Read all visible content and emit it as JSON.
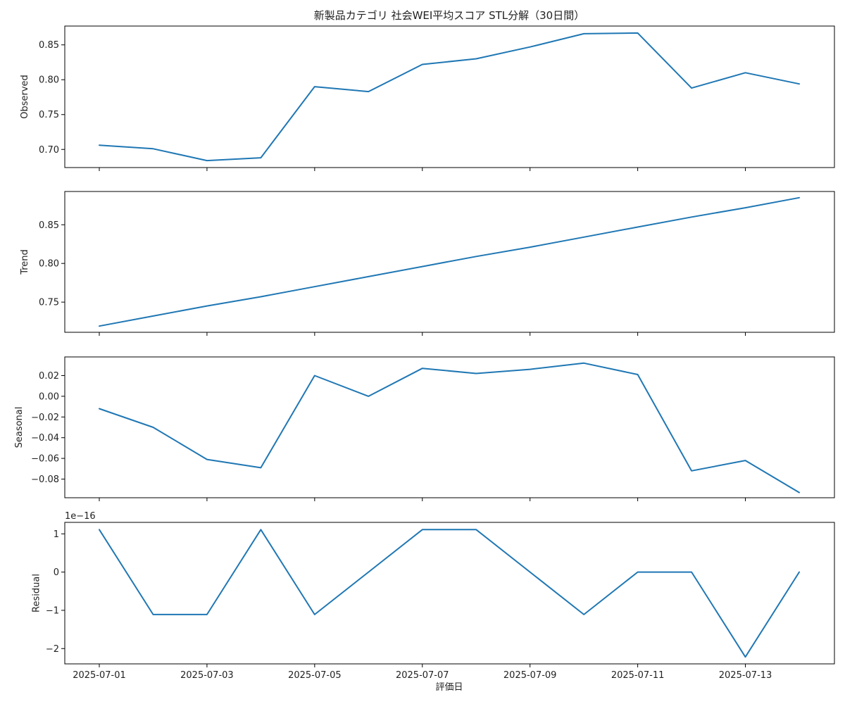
{
  "chart_data": {
    "type": "line",
    "title": "新製品カテゴリ 社会WEI平均スコア STL分解（30日間）",
    "xlabel": "評価日",
    "line_color": "#1f77b4",
    "x": [
      "2025-07-01",
      "2025-07-02",
      "2025-07-03",
      "2025-07-04",
      "2025-07-05",
      "2025-07-06",
      "2025-07-07",
      "2025-07-08",
      "2025-07-09",
      "2025-07-10",
      "2025-07-11",
      "2025-07-12",
      "2025-07-13",
      "2025-07-14"
    ],
    "x_tick_labels": [
      "2025-07-01",
      "2025-07-03",
      "2025-07-05",
      "2025-07-07",
      "2025-07-09",
      "2025-07-11",
      "2025-07-13"
    ],
    "grid": false,
    "panels": [
      {
        "ylabel": "Observed",
        "ylim": [
          0.674,
          0.877
        ],
        "yticks": [
          0.7,
          0.75,
          0.8,
          0.85
        ],
        "ytick_labels": [
          "0.70",
          "0.75",
          "0.80",
          "0.85"
        ],
        "values": [
          0.706,
          0.701,
          0.684,
          0.688,
          0.79,
          0.783,
          0.822,
          0.83,
          0.847,
          0.866,
          0.867,
          0.788,
          0.81,
          0.794
        ]
      },
      {
        "ylabel": "Trend",
        "ylim": [
          0.711,
          0.893
        ],
        "yticks": [
          0.75,
          0.8,
          0.85
        ],
        "ytick_labels": [
          "0.75",
          "0.80",
          "0.85"
        ],
        "values": [
          0.719,
          0.732,
          0.745,
          0.757,
          0.77,
          0.783,
          0.796,
          0.809,
          0.821,
          0.834,
          0.847,
          0.86,
          0.872,
          0.885
        ]
      },
      {
        "ylabel": "Seasonal",
        "ylim": [
          -0.098,
          0.038
        ],
        "yticks": [
          -0.08,
          -0.06,
          -0.04,
          -0.02,
          0.0,
          0.02
        ],
        "ytick_labels": [
          "−0.08",
          "−0.06",
          "−0.04",
          "−0.02",
          "0.00",
          "0.02"
        ],
        "values": [
          -0.012,
          -0.03,
          -0.061,
          -0.069,
          0.02,
          0.0,
          0.027,
          0.022,
          0.026,
          0.032,
          0.021,
          -0.072,
          -0.062,
          -0.093
        ]
      },
      {
        "ylabel": "Residual",
        "offset_label": "1e−16",
        "ylim": [
          -2.4,
          1.3
        ],
        "yticks": [
          -2,
          -1,
          0,
          1
        ],
        "ytick_labels": [
          "−2",
          "−1",
          "0",
          "1"
        ],
        "values": [
          1.11,
          -1.11,
          -1.11,
          1.11,
          -1.11,
          0.0,
          1.11,
          1.11,
          0.0,
          -1.11,
          0.0,
          0.0,
          -2.22,
          0.0
        ]
      }
    ]
  }
}
